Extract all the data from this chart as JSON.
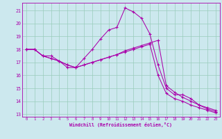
{
  "xlabel": "Windchill (Refroidissement éolien,°C)",
  "xlim": [
    -0.5,
    23.5
  ],
  "ylim": [
    12.8,
    21.6
  ],
  "yticks": [
    13,
    14,
    15,
    16,
    17,
    18,
    19,
    20,
    21
  ],
  "xticks": [
    0,
    1,
    2,
    3,
    4,
    5,
    6,
    7,
    8,
    9,
    10,
    11,
    12,
    13,
    14,
    15,
    16,
    17,
    18,
    19,
    20,
    21,
    22,
    23
  ],
  "bg_color": "#cce8ee",
  "line_color": "#aa00aa",
  "grid_color": "#99ccbb",
  "line1_x": [
    0,
    1,
    2,
    3,
    4,
    5,
    6,
    7,
    8,
    9,
    10,
    11,
    12,
    13,
    14,
    15,
    16,
    17,
    18,
    19,
    20,
    21,
    22,
    23
  ],
  "line1_y": [
    18.0,
    18.0,
    17.5,
    17.5,
    17.1,
    16.6,
    16.6,
    17.3,
    18.0,
    18.8,
    19.5,
    19.7,
    21.2,
    20.9,
    20.4,
    19.2,
    16.8,
    15.0,
    14.5,
    14.5,
    14.2,
    13.7,
    13.5,
    13.3
  ],
  "line2_x": [
    0,
    1,
    2,
    3,
    4,
    5,
    6,
    7,
    8,
    9,
    10,
    11,
    12,
    13,
    14,
    15,
    16,
    17,
    18,
    19,
    20,
    21,
    22,
    23
  ],
  "line2_y": [
    18.0,
    18.0,
    17.5,
    17.3,
    17.1,
    16.8,
    16.6,
    16.8,
    17.0,
    17.2,
    17.4,
    17.6,
    17.9,
    18.1,
    18.3,
    18.5,
    18.7,
    15.2,
    14.7,
    14.3,
    14.0,
    13.7,
    13.4,
    13.2
  ],
  "line3_x": [
    0,
    1,
    2,
    3,
    4,
    5,
    6,
    7,
    8,
    9,
    10,
    11,
    12,
    13,
    14,
    15,
    16,
    17,
    18,
    19,
    20,
    21,
    22,
    23
  ],
  "line3_y": [
    18.0,
    18.0,
    17.5,
    17.3,
    17.1,
    16.8,
    16.6,
    16.8,
    17.0,
    17.2,
    17.4,
    17.6,
    17.8,
    18.0,
    18.2,
    18.4,
    16.0,
    14.6,
    14.2,
    14.0,
    13.7,
    13.5,
    13.3,
    13.1
  ]
}
